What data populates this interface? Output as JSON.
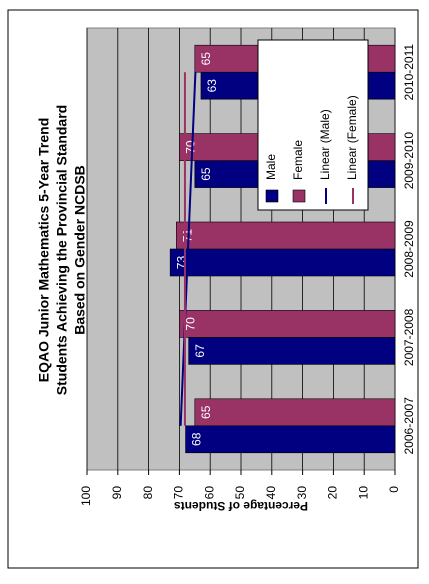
{
  "chart_data": {
    "type": "bar",
    "title": [
      "EQAO Junior Mathematics 5-Year Trend",
      "Students Achieving the Provincial Standard",
      "Based on Gender NCDSB"
    ],
    "y_label": "Percentage of Students",
    "categories": [
      "2006-2007",
      "2007-2008",
      "2008-2009",
      "2009-2010",
      "2010-2011"
    ],
    "series": [
      {
        "name": "Male",
        "color": "#000080",
        "values": [
          68,
          67,
          73,
          65,
          63
        ],
        "trendline": {
          "name": "Linear (Male)",
          "color": "#000080"
        }
      },
      {
        "name": "Female",
        "color": "#993366",
        "values": [
          65,
          70,
          71,
          70,
          65
        ],
        "trendline": {
          "name": "Linear (Female)",
          "color": "#993366"
        }
      }
    ],
    "ylim": [
      0,
      100
    ],
    "yticks": [
      0,
      10,
      20,
      30,
      40,
      50,
      60,
      70,
      80,
      90,
      100
    ],
    "grid": true,
    "legend": "top-right",
    "data_labels": true
  }
}
